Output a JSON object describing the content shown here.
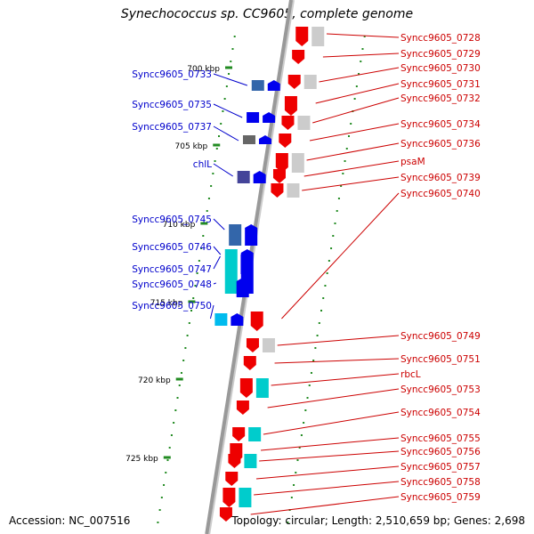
{
  "title": "Synechococcus sp. CC9605, complete genome",
  "accession": "Accession: NC_007516",
  "summary": "Topology: circular; Length: 2,510,659 bp; Genes: 2,698",
  "colors": {
    "forward_label": "#0000cc",
    "reverse_label": "#cc0000",
    "forward_gene": "#0000ee",
    "reverse_gene": "#ee0000",
    "tick": "#228b22",
    "backbone": "#999999"
  },
  "ticks": [
    {
      "label": "700 kbp"
    },
    {
      "label": "705 kbp"
    },
    {
      "label": "710 kbp"
    },
    {
      "label": "715 kbp"
    },
    {
      "label": "720 kbp"
    },
    {
      "label": "725 kbp"
    }
  ],
  "forward_genes": [
    {
      "name": "Syncc9605_0733"
    },
    {
      "name": "Syncc9605_0735"
    },
    {
      "name": "Syncc9605_0737"
    },
    {
      "name": "chlL"
    },
    {
      "name": "Syncc9605_0745"
    },
    {
      "name": "Syncc9605_0746"
    },
    {
      "name": "Syncc9605_0747"
    },
    {
      "name": "Syncc9605_0748"
    },
    {
      "name": "Syncc9605_0750"
    }
  ],
  "reverse_genes": [
    {
      "name": "Syncc9605_0728"
    },
    {
      "name": "Syncc9605_0729"
    },
    {
      "name": "Syncc9605_0730"
    },
    {
      "name": "Syncc9605_0731"
    },
    {
      "name": "Syncc9605_0732"
    },
    {
      "name": "Syncc9605_0734"
    },
    {
      "name": "Syncc9605_0736"
    },
    {
      "name": "psaM"
    },
    {
      "name": "Syncc9605_0739"
    },
    {
      "name": "Syncc9605_0740"
    },
    {
      "name": "Syncc9605_0749"
    },
    {
      "name": "Syncc9605_0751"
    },
    {
      "name": "rbcL"
    },
    {
      "name": "Syncc9605_0753"
    },
    {
      "name": "Syncc9605_0754"
    },
    {
      "name": "Syncc9605_0755"
    },
    {
      "name": "Syncc9605_0756"
    },
    {
      "name": "Syncc9605_0757"
    },
    {
      "name": "Syncc9605_0758"
    },
    {
      "name": "Syncc9605_0759"
    }
  ]
}
